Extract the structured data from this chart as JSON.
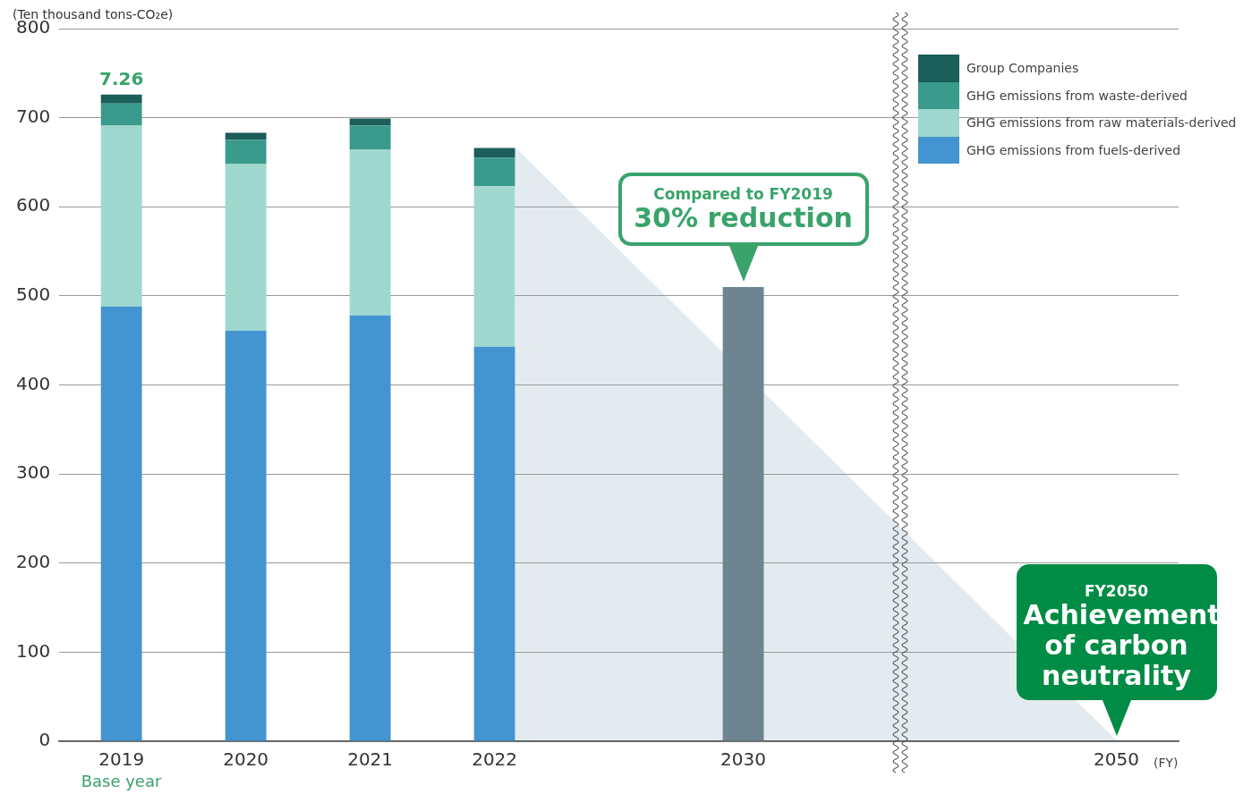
{
  "chart_data": {
    "type": "bar",
    "stacked": true,
    "ylabel": "(Ten thousand tons-CO₂e)",
    "categories": [
      "2019",
      "2020",
      "2021",
      "2022",
      null,
      "2030",
      null,
      null,
      "2050"
    ],
    "series": [
      {
        "name": "GHG emissions from fuels-derived",
        "color": "#4394d0",
        "values": [
          488,
          461,
          478,
          443,
          null,
          null,
          null,
          null,
          null
        ]
      },
      {
        "name": "GHG emissions from raw materials-derived",
        "color": "#9ed8cf",
        "values": [
          203,
          187,
          186,
          180,
          null,
          null,
          null,
          null,
          null
        ]
      },
      {
        "name": "GHG emissions from waste-derived",
        "color": "#3a9a8c",
        "values": [
          25,
          27,
          27,
          32,
          null,
          null,
          null,
          null,
          null
        ]
      },
      {
        "name": "Group Companies",
        "color": "#1b5e5a",
        "values": [
          10,
          8,
          8,
          11,
          null,
          null,
          null,
          null,
          null
        ]
      },
      {
        "color": "#6d8591",
        "values": [
          null,
          null,
          null,
          null,
          null,
          510,
          null,
          null,
          null
        ]
      }
    ],
    "ylim": [
      0,
      800
    ],
    "yticks": [
      0,
      100,
      200,
      300,
      400,
      500,
      600,
      700,
      800
    ],
    "grid": "y",
    "legend": "top right",
    "annotations": [
      {
        "text": "7.26",
        "x": "2019",
        "y": 726
      },
      "Compared to FY2019",
      "30% reduction",
      "FY2050",
      "Achievement of carbon neutrality",
      "Base year",
      "(FY)"
    ]
  }
}
